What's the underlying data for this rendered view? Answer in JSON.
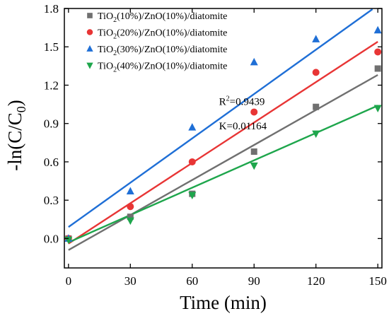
{
  "chart_data": {
    "type": "scatter",
    "x": [
      0,
      30,
      60,
      90,
      120,
      150
    ],
    "xlabel": "Time (min)",
    "ylabel_parts": {
      "main": "-ln(C/C",
      "sub": "0",
      "close": ")"
    },
    "xlim": [
      -2,
      152
    ],
    "ylim": [
      -0.23,
      1.8
    ],
    "xticks": [
      0,
      30,
      60,
      90,
      120,
      150
    ],
    "yticks": [
      0.0,
      0.3,
      0.6,
      0.9,
      1.2,
      1.5,
      1.8
    ],
    "ytick_labels": [
      "0.0",
      "0.3",
      "0.6",
      "0.9",
      "1.2",
      "1.5",
      "1.8"
    ],
    "xtick_labels": [
      "0",
      "30",
      "60",
      "90",
      "120",
      "150"
    ],
    "legend_position": "top-left",
    "series": [
      {
        "name_parts": {
          "pre": "TiO",
          "sub": "2",
          "post": "(10%)/ZnO(10%)/diatomite"
        },
        "marker": "square",
        "color": "#707070",
        "values": [
          0.0,
          0.17,
          0.35,
          0.68,
          1.03,
          1.33
        ],
        "fit": [
          -0.09,
          1.28
        ]
      },
      {
        "name_parts": {
          "pre": "TiO",
          "sub": "2",
          "post": "(20%)/ZnO(10%)/diatomite"
        },
        "marker": "circle",
        "color": "#e83535",
        "values": [
          0.0,
          0.25,
          0.6,
          0.99,
          1.3,
          1.46
        ],
        "fit": [
          -0.04,
          1.54
        ]
      },
      {
        "name_parts": {
          "pre": "TiO",
          "sub": "2",
          "post": "(30%)/ZnO(10%)/diatomite"
        },
        "marker": "triangle-up",
        "color": "#1f6fd6",
        "values": [
          0.0,
          0.37,
          0.87,
          1.38,
          1.56,
          1.63
        ],
        "fit": [
          0.09,
          1.83
        ]
      },
      {
        "name_parts": {
          "pre": "TiO",
          "sub": "2",
          "post": "(40%)/ZnO(10%)/diatomite"
        },
        "marker": "triangle-down",
        "color": "#1ea64c",
        "values": [
          -0.01,
          0.14,
          0.34,
          0.57,
          0.82,
          1.02
        ],
        "fit": [
          -0.03,
          1.04
        ]
      }
    ],
    "annotations": [
      {
        "pre": "R",
        "sup": "2",
        "post": "=0.9439",
        "x": 73,
        "y": 1.045
      },
      {
        "text": "K=0.01164",
        "x": 73,
        "y": 0.855
      }
    ]
  }
}
